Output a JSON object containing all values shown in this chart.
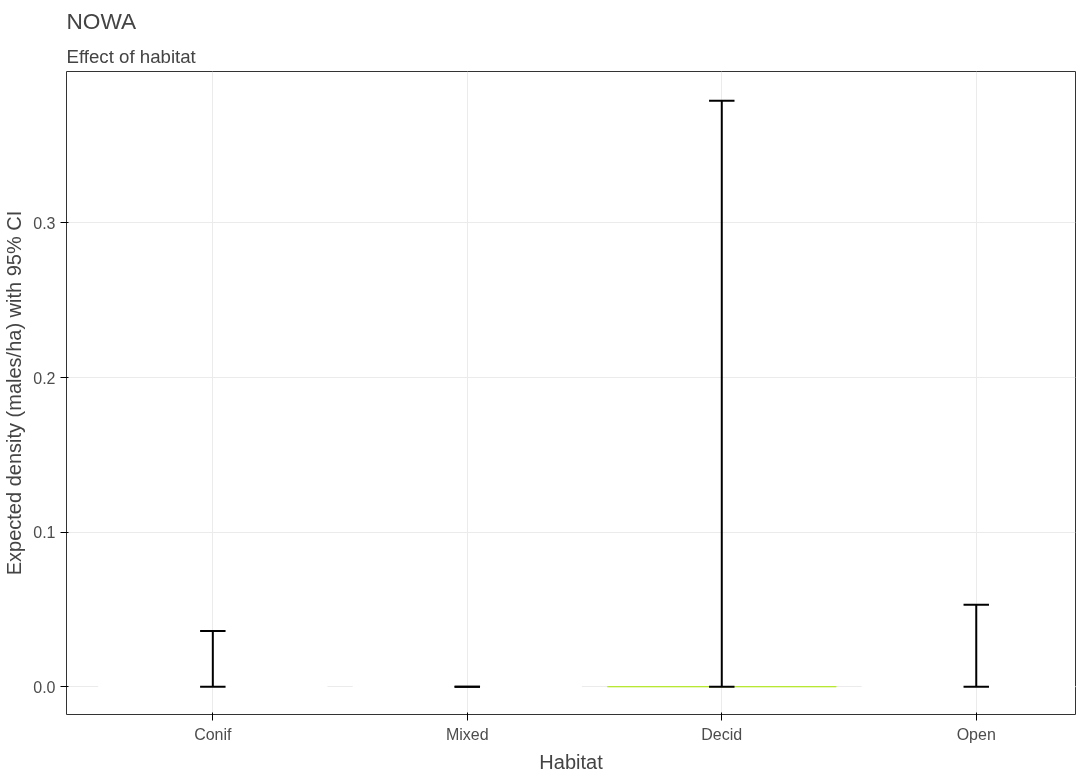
{
  "chart_data": {
    "type": "bar",
    "title": "NOWA",
    "subtitle": "Effect of habitat",
    "xlabel": "Habitat",
    "ylabel": "Expected density (males/ha) with 95% CI",
    "categories": [
      "Conif",
      "Mixed",
      "Decid",
      "Open"
    ],
    "values": [
      0,
      0,
      0,
      0
    ],
    "colors": [
      "#ffffff",
      "#ffffff",
      "#b8e82e",
      "#ffffff"
    ],
    "errors": [
      [
        0,
        0.036
      ],
      [
        0,
        0
      ],
      [
        0,
        0.379
      ],
      [
        0,
        0.053
      ]
    ],
    "ylim": [
      -0.018,
      0.398
    ],
    "yticks": [
      {
        "value": 0,
        "label": "0.0"
      },
      {
        "value": 0.1,
        "label": "0.1"
      },
      {
        "value": 0.2,
        "label": "0.2"
      },
      {
        "value": 0.3,
        "label": "0.3"
      }
    ],
    "grid": true
  }
}
